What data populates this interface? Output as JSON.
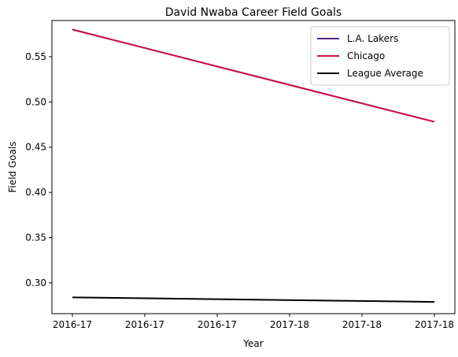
{
  "chart_data": {
    "type": "line",
    "title": "David Nwaba Career Field Goals",
    "xlabel": "Year",
    "ylabel": "Field Goals",
    "x_tick_labels": [
      "2016-17",
      "2016-17",
      "2016-17",
      "2017-18",
      "2017-18",
      "2017-18"
    ],
    "categories": [
      "2016-17",
      "2017-18"
    ],
    "ylim": [
      0.266,
      0.59
    ],
    "y_ticks": [
      0.3,
      0.35,
      0.4,
      0.45,
      0.5,
      0.55
    ],
    "y_tick_labels": [
      "0.30",
      "0.35",
      "0.40",
      "0.45",
      "0.50",
      "0.55"
    ],
    "series": [
      {
        "name": "L.A. Lakers",
        "color": "#552583",
        "values": [
          0.58,
          0.478
        ]
      },
      {
        "name": "Chicago",
        "color": "#CE1141",
        "values": [
          0.58,
          0.478
        ]
      },
      {
        "name": "League Average",
        "color": "#000000",
        "values": [
          0.284,
          0.279
        ]
      }
    ],
    "legend": "top-right",
    "grid": false
  }
}
